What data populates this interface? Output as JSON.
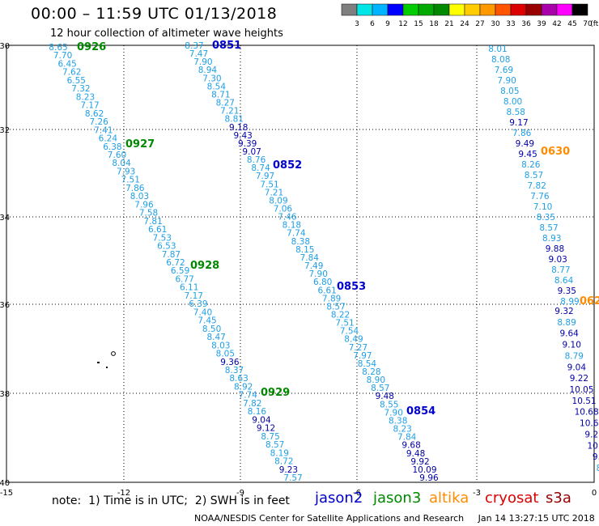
{
  "header": {
    "title": "00:00 – 11:59 UTC 01/13/2018",
    "subtitle": "12 hour collection of altimeter wave heights"
  },
  "colorbar": {
    "labels": [
      "3",
      "6",
      "9",
      "12",
      "15",
      "18",
      "21",
      "24",
      "27",
      "30",
      "33",
      "36",
      "39",
      "42",
      "45",
      "70",
      "(ft)"
    ],
    "colors": [
      "#7f7f7f",
      "#00e6e6",
      "#00b4ff",
      "#0000ff",
      "#00cc00",
      "#00aa00",
      "#008800",
      "#ffff00",
      "#ffcc00",
      "#ff9900",
      "#ff5500",
      "#dd0000",
      "#990000",
      "#aa00aa",
      "#ff00ff",
      "#000000"
    ]
  },
  "map": {
    "lat_ticks": [
      "-30",
      "-32",
      "-34",
      "-36",
      "-38",
      "-40"
    ],
    "lon_ticks": [
      "-15",
      "-12",
      "-9",
      "-6",
      "-3",
      "0"
    ]
  },
  "colors": {
    "jason2": "#0000cc",
    "jason3": "#008800",
    "altika": "#ff8c00",
    "cryosat": "#dd0000",
    "s3a": "#990000",
    "swh_light": "#1e9fe6",
    "swh_dark": "#0000aa"
  },
  "passes": [
    {
      "label": "0926",
      "satellite": "jason3"
    },
    {
      "label": "0927",
      "satellite": "jason3"
    },
    {
      "label": "0928",
      "satellite": "jason3"
    },
    {
      "label": "0929",
      "satellite": "jason3"
    },
    {
      "label": "0851",
      "satellite": "jason2"
    },
    {
      "label": "0852",
      "satellite": "jason2"
    },
    {
      "label": "0853",
      "satellite": "jason2"
    },
    {
      "label": "0854",
      "satellite": "jason2"
    },
    {
      "label": "0630",
      "satellite": "altika"
    },
    {
      "label": "062",
      "satellite": "altika"
    }
  ],
  "tracks": [
    {
      "values": [
        "8.65",
        "7.70",
        "6.45",
        "7.62",
        "6.55",
        "7.32",
        "8.23",
        "7.17",
        "8.62",
        "7.26",
        "7.41",
        "6.24",
        "6.38",
        "7.60",
        "8.04",
        "7.93",
        "7.51",
        "7.86",
        "8.03",
        "7.96",
        "7.58",
        "7.81",
        "6.61",
        "7.53",
        "6.53",
        "7.87",
        "6.72",
        "6.59",
        "6.77",
        "6.11",
        "7.17",
        "6.39",
        "7.40",
        "7.45",
        "8.50",
        "8.47",
        "8.03",
        "8.05",
        "9.36",
        "8.37",
        "8.63",
        "8.92",
        "7.74",
        "7.82",
        "8.16",
        "9.04",
        "9.12",
        "8.75",
        "8.57",
        "8.19",
        "8.72",
        "9.23",
        "7.57"
      ]
    },
    {
      "values": [
        "8.37",
        "7.47",
        "7.90",
        "8.94",
        "7.30",
        "8.54",
        "8.71",
        "8.27",
        "7.21",
        "8.81",
        "9.18",
        "9.43",
        "9.39",
        "9.07",
        "8.76",
        "8.74",
        "7.97",
        "7.51",
        "7.21",
        "8.09",
        "7.06",
        "7.46",
        "8.18",
        "7.74",
        "8.38",
        "8.15",
        "7.84",
        "7.49",
        "7.90",
        "6.80",
        "6.61",
        "7.89",
        "8.57",
        "8.22",
        "7.51",
        "7.54",
        "8.49",
        "7.27",
        "7.97",
        "8.54",
        "8.28",
        "8.90",
        "8.57",
        "9.48",
        "8.55",
        "7.90",
        "8.38",
        "8.23",
        "7.84",
        "9.68",
        "9.48",
        "9.92",
        "10.09",
        "9.96"
      ]
    },
    {
      "values": [
        "8.01",
        "8.08",
        "7.69",
        "7.90",
        "8.05",
        "8.00",
        "8.58",
        "9.17",
        "7.86",
        "9.49",
        "9.45",
        "8.26",
        "8.57",
        "7.82",
        "7.76",
        "7.10",
        "8.35",
        "8.57",
        "8.93",
        "9.88",
        "9.03",
        "8.77",
        "8.64",
        "9.35",
        "8.99"
      ]
    },
    {
      "values": [
        "9.32",
        "8.89",
        "9.64",
        "9.10",
        "8.79",
        "9.04",
        "9.22",
        "10.05",
        "10.51",
        "10.68",
        "10.6",
        "9.2",
        "10.",
        "9.",
        "8"
      ]
    }
  ],
  "legend": {
    "note": "note:  1) Time is in UTC;  2) SWH is in feet",
    "jason2": "jason2",
    "jason3": "jason3",
    "altika": "altika",
    "cryosat": "cryosat",
    "s3a": "s3a"
  },
  "footer": {
    "credit": "NOAA/NESDIS Center for Satellite Applications and Research     Jan 14 13:27:15 UTC 2018"
  }
}
